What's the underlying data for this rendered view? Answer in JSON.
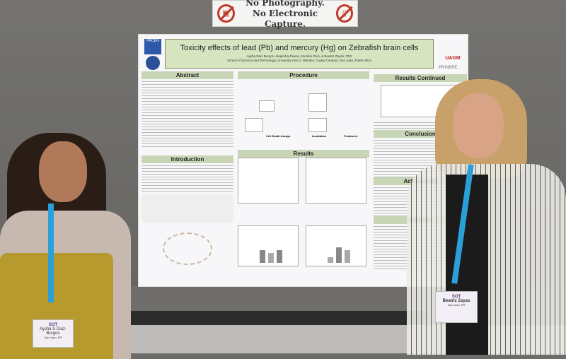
{
  "sign": {
    "line1": "No Photography.",
    "line2": "No Electronic Capture.",
    "icons": [
      "no-camera-icon",
      "no-phone-icon"
    ],
    "color": "#c0392b"
  },
  "poster": {
    "logos": {
      "left_top": "PRCEN",
      "right_top": "UAGM",
      "right_bottom": "PRINBRE"
    },
    "title": "Toxicity effects of lead (Pb) and mercury (Hg) on Zebrafish brain cells",
    "authors": "Aysha Diaz Burgos, Alejandra Rivera, Karoline Rios, & Beatriz Zayas, PhD",
    "affiliation": "School of Science and Technology, University Ana G. Méndez, Cupey Campus, San Juan, Puerto Rico",
    "sections": {
      "abstract": "Abstract",
      "introduction": "Introduction",
      "procedure": "Procedure",
      "results": "Results",
      "results_continued": "Results Continued",
      "conclusion": "Conclusion",
      "acknowledgements": "Acknowledg",
      "bibliography": "Bibliogr"
    },
    "procedure_steps": [
      "Cell Death Assays",
      "Incubation",
      "Treatment"
    ],
    "header_color": "#d7e4c0"
  },
  "badges": {
    "left": {
      "org": "SOT",
      "name": "Aysha S Diaz-Burgos",
      "city": "San Juan, PR"
    },
    "right": {
      "org": "SOT",
      "name": "Beatriz Zayas",
      "city": "San Juan, PR"
    }
  }
}
